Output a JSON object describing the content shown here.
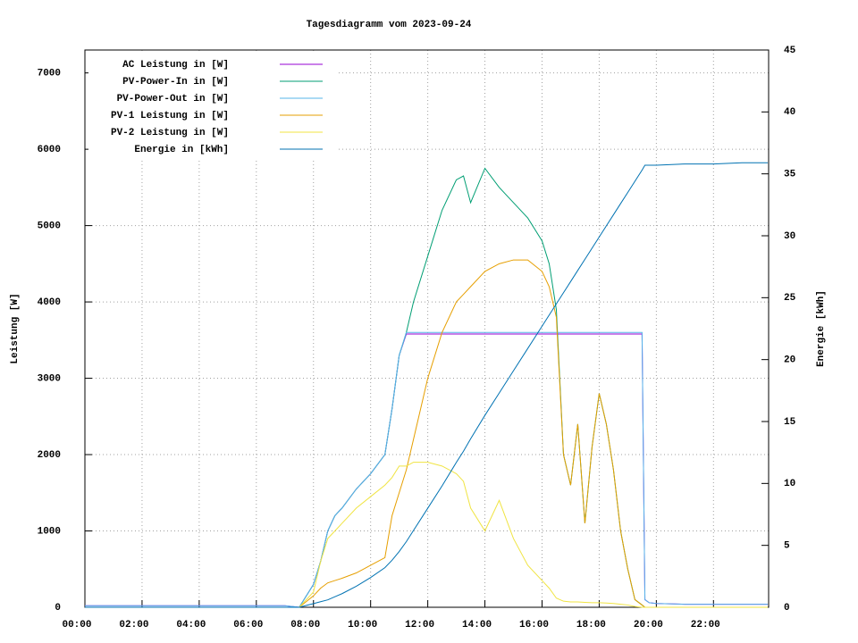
{
  "chart_data": {
    "type": "line",
    "title": "Tagesdiagramm vom 2023-09-24",
    "ylabel": "Leistung [W]",
    "y2label": "Energie [kWh]",
    "x": [
      0,
      1,
      2,
      3,
      4,
      5,
      6,
      7,
      7.5,
      8,
      8.25,
      8.5,
      8.75,
      9,
      9.5,
      10,
      10.5,
      10.75,
      11,
      11.25,
      11.5,
      12,
      12.5,
      13,
      13.25,
      13.5,
      14,
      14.5,
      15,
      15.5,
      16,
      16.25,
      16.5,
      16.75,
      17,
      17.25,
      17.5,
      17.75,
      18,
      18.25,
      18.5,
      18.75,
      19,
      19.25,
      19.5,
      19.6,
      19.75,
      20,
      21,
      22,
      23,
      23.9
    ],
    "xlim": [
      0,
      23.93
    ],
    "xticks": [
      {
        "value": 0,
        "label": "00:00"
      },
      {
        "value": 2,
        "label": "02:00"
      },
      {
        "value": 4,
        "label": "04:00"
      },
      {
        "value": 6,
        "label": "06:00"
      },
      {
        "value": 8,
        "label": "08:00"
      },
      {
        "value": 10,
        "label": "10:00"
      },
      {
        "value": 12,
        "label": "12:00"
      },
      {
        "value": 14,
        "label": "14:00"
      },
      {
        "value": 16,
        "label": "16:00"
      },
      {
        "value": 18,
        "label": "18:00"
      },
      {
        "value": 20,
        "label": "20:00"
      },
      {
        "value": 22,
        "label": "22:00"
      }
    ],
    "ylim": [
      0,
      7300
    ],
    "yticks": [
      0,
      1000,
      2000,
      3000,
      4000,
      5000,
      6000,
      7000
    ],
    "y2lim": [
      0,
      45
    ],
    "y2ticks": [
      0,
      5,
      10,
      15,
      20,
      25,
      30,
      35,
      40,
      45
    ],
    "grid": true,
    "legend": "top-left",
    "series": [
      {
        "name": "AC Leistung in [W]",
        "color": "#9400d3",
        "values": [
          20,
          20,
          20,
          20,
          20,
          20,
          20,
          20,
          0,
          300,
          600,
          1000,
          1200,
          1300,
          1550,
          1750,
          2000,
          2600,
          3300,
          3580,
          3580,
          3580,
          3580,
          3580,
          3580,
          3580,
          3580,
          3580,
          3580,
          3580,
          3580,
          3580,
          3580,
          3580,
          3580,
          3580,
          3580,
          3580,
          3580,
          3580,
          3580,
          3580,
          3580,
          3580,
          3580,
          100,
          60,
          50,
          40,
          40,
          40,
          40
        ]
      },
      {
        "name": "PV-Power-In in [W]",
        "color": "#009e73",
        "values": [
          0,
          0,
          0,
          0,
          0,
          0,
          0,
          0,
          0,
          300,
          600,
          1000,
          1200,
          1300,
          1550,
          1750,
          2000,
          2600,
          3300,
          3600,
          4000,
          4600,
          5200,
          5600,
          5650,
          5300,
          5750,
          5500,
          5300,
          5100,
          4800,
          4500,
          3900,
          2000,
          1600,
          2400,
          1100,
          2100,
          2800,
          2400,
          1800,
          1000,
          500,
          100,
          30,
          0,
          0,
          0,
          0,
          0,
          0,
          0
        ]
      },
      {
        "name": "PV-Power-Out in [W]",
        "color": "#56b4e9",
        "values": [
          20,
          20,
          20,
          20,
          20,
          20,
          20,
          20,
          0,
          300,
          600,
          1000,
          1200,
          1300,
          1550,
          1750,
          2000,
          2600,
          3300,
          3600,
          3600,
          3600,
          3600,
          3600,
          3600,
          3600,
          3600,
          3600,
          3600,
          3600,
          3600,
          3600,
          3600,
          3600,
          3600,
          3600,
          3600,
          3600,
          3600,
          3600,
          3600,
          3600,
          3600,
          3600,
          3600,
          100,
          60,
          50,
          40,
          40,
          40,
          40
        ]
      },
      {
        "name": "PV-1 Leistung in [W]",
        "color": "#e69f00",
        "values": [
          0,
          0,
          0,
          0,
          0,
          0,
          0,
          0,
          0,
          150,
          250,
          320,
          350,
          380,
          450,
          550,
          650,
          1200,
          1500,
          1800,
          2200,
          3000,
          3600,
          4000,
          4100,
          4200,
          4400,
          4500,
          4550,
          4550,
          4400,
          4200,
          3800,
          2000,
          1600,
          2400,
          1100,
          2100,
          2800,
          2400,
          1800,
          1000,
          500,
          100,
          30,
          0,
          0,
          0,
          0,
          0,
          0,
          0
        ]
      },
      {
        "name": "PV-2 Leistung in [W]",
        "color": "#f0e442",
        "values": [
          0,
          0,
          0,
          0,
          0,
          0,
          0,
          0,
          0,
          200,
          600,
          900,
          1000,
          1100,
          1300,
          1450,
          1600,
          1700,
          1850,
          1850,
          1900,
          1900,
          1850,
          1750,
          1650,
          1300,
          1000,
          1400,
          900,
          550,
          350,
          250,
          120,
          80,
          70,
          70,
          65,
          60,
          60,
          55,
          50,
          40,
          30,
          10,
          0,
          0,
          0,
          0,
          0,
          0,
          0,
          0
        ]
      },
      {
        "name": "Energie in [kWh]",
        "color": "#0072b2",
        "axis": "y2",
        "values": [
          0,
          0,
          0,
          0,
          0,
          0,
          0,
          0,
          0,
          0.3,
          0.45,
          0.6,
          0.85,
          1.1,
          1.7,
          2.4,
          3.2,
          3.8,
          4.5,
          5.3,
          6.2,
          8.0,
          9.8,
          11.7,
          12.6,
          13.6,
          15.5,
          17.3,
          19.1,
          20.9,
          22.7,
          23.6,
          24.5,
          25.4,
          26.3,
          27.2,
          28.1,
          29.0,
          29.9,
          30.8,
          31.7,
          32.6,
          33.5,
          34.4,
          35.3,
          35.7,
          35.7,
          35.7,
          35.8,
          35.8,
          35.9,
          35.9
        ]
      }
    ]
  }
}
